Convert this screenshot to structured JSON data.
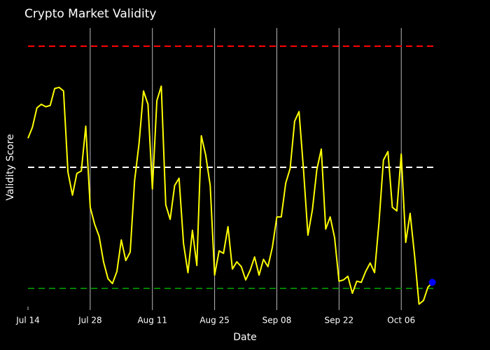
{
  "chart_data": {
    "type": "line",
    "title": "Crypto Market Validity",
    "xlabel": "Date",
    "ylabel": "Validity Score",
    "x_start": "2024-07-14",
    "x_end": "2024-10-14",
    "ylim": [
      -1.15,
      1.15
    ],
    "x_ticks": [
      {
        "date": "2024-07-14",
        "label": "Jul 14"
      },
      {
        "date": "2024-07-28",
        "label": "Jul 28"
      },
      {
        "date": "2024-08-11",
        "label": "Aug 11"
      },
      {
        "date": "2024-08-25",
        "label": "Aug 25"
      },
      {
        "date": "2024-09-08",
        "label": "Sep 08"
      },
      {
        "date": "2024-09-22",
        "label": "Sep 22"
      },
      {
        "date": "2024-10-06",
        "label": "Oct 06"
      }
    ],
    "grid": {
      "vertical": true,
      "horizontal": false
    },
    "reference_lines": [
      {
        "y": 1.0,
        "color": "#ff0000",
        "dash": true
      },
      {
        "y": 0.0,
        "color": "#ffffff",
        "dash": true
      },
      {
        "y": -1.0,
        "color": "#008000",
        "dash": true
      }
    ],
    "series": [
      {
        "color": "#ffff00",
        "x": [
          "2024-07-14",
          "2024-07-15",
          "2024-07-16",
          "2024-07-17",
          "2024-07-18",
          "2024-07-19",
          "2024-07-20",
          "2024-07-21",
          "2024-07-22",
          "2024-07-23",
          "2024-07-24",
          "2024-07-25",
          "2024-07-26",
          "2024-07-27",
          "2024-07-28",
          "2024-07-29",
          "2024-07-30",
          "2024-07-31",
          "2024-08-01",
          "2024-08-02",
          "2024-08-03",
          "2024-08-04",
          "2024-08-05",
          "2024-08-06",
          "2024-08-07",
          "2024-08-08",
          "2024-08-09",
          "2024-08-10",
          "2024-08-11",
          "2024-08-12",
          "2024-08-13",
          "2024-08-14",
          "2024-08-15",
          "2024-08-16",
          "2024-08-17",
          "2024-08-18",
          "2024-08-19",
          "2024-08-20",
          "2024-08-21",
          "2024-08-22",
          "2024-08-23",
          "2024-08-24",
          "2024-08-25",
          "2024-08-26",
          "2024-08-27",
          "2024-08-28",
          "2024-08-29",
          "2024-08-30",
          "2024-08-31",
          "2024-09-01",
          "2024-09-02",
          "2024-09-03",
          "2024-09-04",
          "2024-09-05",
          "2024-09-06",
          "2024-09-07",
          "2024-09-08",
          "2024-09-09",
          "2024-09-10",
          "2024-09-11",
          "2024-09-12",
          "2024-09-13",
          "2024-09-14",
          "2024-09-15",
          "2024-09-16",
          "2024-09-17",
          "2024-09-18",
          "2024-09-19",
          "2024-09-20",
          "2024-09-21",
          "2024-09-22",
          "2024-09-23",
          "2024-09-24",
          "2024-09-25",
          "2024-09-26",
          "2024-09-27",
          "2024-09-28",
          "2024-09-29",
          "2024-09-30",
          "2024-10-01",
          "2024-10-02",
          "2024-10-03",
          "2024-10-04",
          "2024-10-05",
          "2024-10-06",
          "2024-10-07",
          "2024-10-08",
          "2024-10-09",
          "2024-10-10",
          "2024-10-11",
          "2024-10-12",
          "2024-10-13"
        ],
        "values": [
          0.24,
          0.33,
          0.49,
          0.52,
          0.5,
          0.51,
          0.65,
          0.66,
          0.63,
          -0.04,
          -0.23,
          -0.05,
          -0.03,
          0.34,
          -0.33,
          -0.47,
          -0.57,
          -0.78,
          -0.92,
          -0.96,
          -0.86,
          -0.6,
          -0.77,
          -0.7,
          -0.11,
          0.2,
          0.63,
          0.52,
          -0.18,
          0.55,
          0.67,
          -0.31,
          -0.43,
          -0.15,
          -0.09,
          -0.63,
          -0.87,
          -0.52,
          -0.81,
          0.26,
          0.1,
          -0.15,
          -0.89,
          -0.69,
          -0.71,
          -0.49,
          -0.84,
          -0.78,
          -0.82,
          -0.93,
          -0.85,
          -0.74,
          -0.89,
          -0.76,
          -0.82,
          -0.66,
          -0.41,
          -0.41,
          -0.13,
          -0.01,
          0.38,
          0.46,
          -0.02,
          -0.56,
          -0.35,
          -0.02,
          0.15,
          -0.51,
          -0.41,
          -0.58,
          -0.94,
          -0.93,
          -0.9,
          -1.04,
          -0.94,
          -0.95,
          -0.86,
          -0.79,
          -0.87,
          -0.45,
          0.06,
          0.13,
          -0.33,
          -0.36,
          0.11,
          -0.62,
          -0.38,
          -0.73,
          -1.13,
          -1.1,
          -0.99,
          -0.95
        ]
      }
    ],
    "highlight_point": {
      "date": "2024-10-13",
      "value": -0.95,
      "color": "#0000ff"
    }
  }
}
